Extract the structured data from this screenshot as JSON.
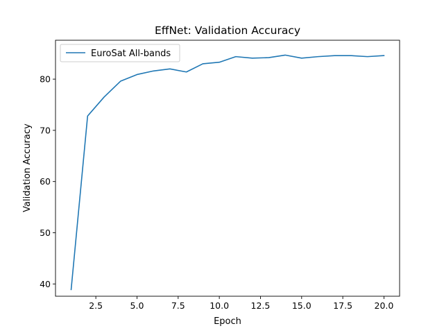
{
  "chart_data": {
    "type": "line",
    "title": "EffNet: Validation Accuracy",
    "xlabel": "Epoch",
    "ylabel": "Validation Accuracy",
    "xlim": [
      0.05,
      20.95
    ],
    "ylim": [
      37.6,
      87.6
    ],
    "xticks": [
      2.5,
      5.0,
      7.5,
      10.0,
      12.5,
      15.0,
      17.5,
      20.0
    ],
    "xtick_labels": [
      "2.5",
      "5.0",
      "7.5",
      "10.0",
      "12.5",
      "15.0",
      "17.5",
      "20.0"
    ],
    "yticks": [
      40,
      50,
      60,
      70,
      80
    ],
    "ytick_labels": [
      "40",
      "50",
      "60",
      "70",
      "80"
    ],
    "grid": false,
    "legend_position": "top-left",
    "series": [
      {
        "name": "EuroSat All-bands",
        "color": "#1f77b4",
        "x": [
          1,
          2,
          3,
          4,
          5,
          6,
          7,
          8,
          9,
          10,
          11,
          12,
          13,
          14,
          15,
          16,
          17,
          18,
          19,
          20
        ],
        "y": [
          38.9,
          72.8,
          76.5,
          79.6,
          80.9,
          81.6,
          82.0,
          81.4,
          83.0,
          83.3,
          84.4,
          84.1,
          84.2,
          84.7,
          84.1,
          84.4,
          84.6,
          84.6,
          84.4,
          84.6
        ]
      }
    ]
  }
}
